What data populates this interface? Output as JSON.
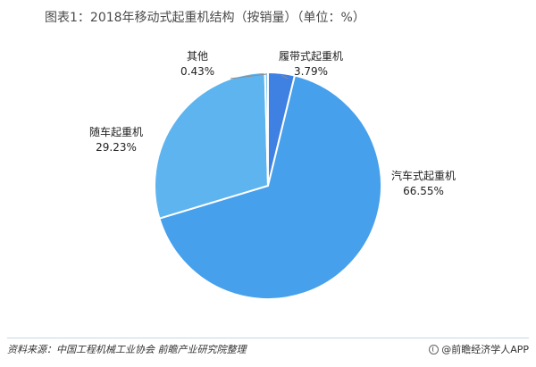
{
  "title": "图表1：2018年移动式起重机结构（按销量）（单位：%）",
  "chart_data": {
    "type": "pie",
    "title": "图表1：2018年移动式起重机结构（按销量）（单位：%）",
    "slices": [
      {
        "name": "履带式起重机",
        "value": 3.79,
        "label": "3.79%",
        "color": "#3f80e3"
      },
      {
        "name": "汽车式起重机",
        "value": 66.55,
        "label": "66.55%",
        "color": "#46a0ec"
      },
      {
        "name": "随车起重机",
        "value": 29.23,
        "label": "29.23%",
        "color": "#5db4ef"
      },
      {
        "name": "其他",
        "value": 0.43,
        "label": "0.43%",
        "color": "#8ccbf2"
      }
    ],
    "start_angle_deg": 0,
    "direction": "clockwise",
    "legend": "none"
  },
  "footer": {
    "source": "资料来源：中国工程机械工业协会 前瞻产业研究院整理",
    "brand": "@前瞻经济学人APP"
  }
}
